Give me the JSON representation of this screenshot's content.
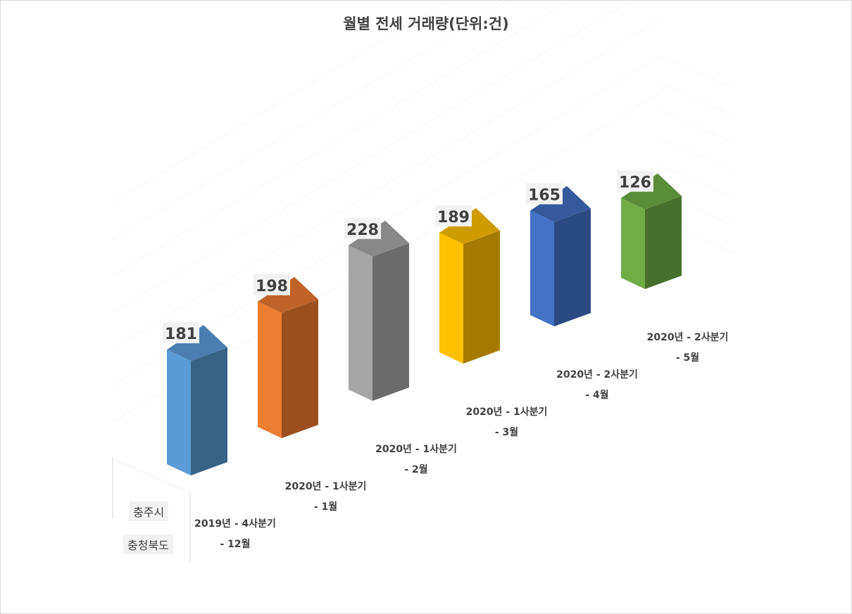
{
  "title": "월별 전세 거래량(단위:건)",
  "row_labels": [
    "충주시",
    "충청북도"
  ],
  "chart_data": {
    "type": "bar",
    "title": "월별 전세 거래량(단위:건)",
    "categories": [
      {
        "line1": "2019년 - 4사분기",
        "line2": "- 12월"
      },
      {
        "line1": "2020년 - 1사분기",
        "line2": "- 1월"
      },
      {
        "line1": "2020년 - 1사분기",
        "line2": "- 2월"
      },
      {
        "line1": "2020년 - 1사분기",
        "line2": "- 3월"
      },
      {
        "line1": "2020년 - 2사분기",
        "line2": "- 4월"
      },
      {
        "line1": "2020년 - 2사분기",
        "line2": "- 5월"
      }
    ],
    "values": [
      181,
      198,
      228,
      189,
      165,
      126
    ],
    "colors": [
      {
        "front": "#5b9bd5",
        "side": "#376387",
        "top": "#4a7eb0"
      },
      {
        "front": "#ed7d31",
        "side": "#9c4f1e",
        "top": "#c0632a"
      },
      {
        "front": "#a5a5a5",
        "side": "#6b6b6b",
        "top": "#888888"
      },
      {
        "front": "#ffc000",
        "side": "#a47b00",
        "top": "#cf9c00"
      },
      {
        "front": "#4472c4",
        "side": "#2b4a82",
        "top": "#36599c"
      },
      {
        "front": "#70ad47",
        "side": "#47702c",
        "top": "#5a8c39"
      }
    ],
    "legend": "none",
    "grid": true
  }
}
